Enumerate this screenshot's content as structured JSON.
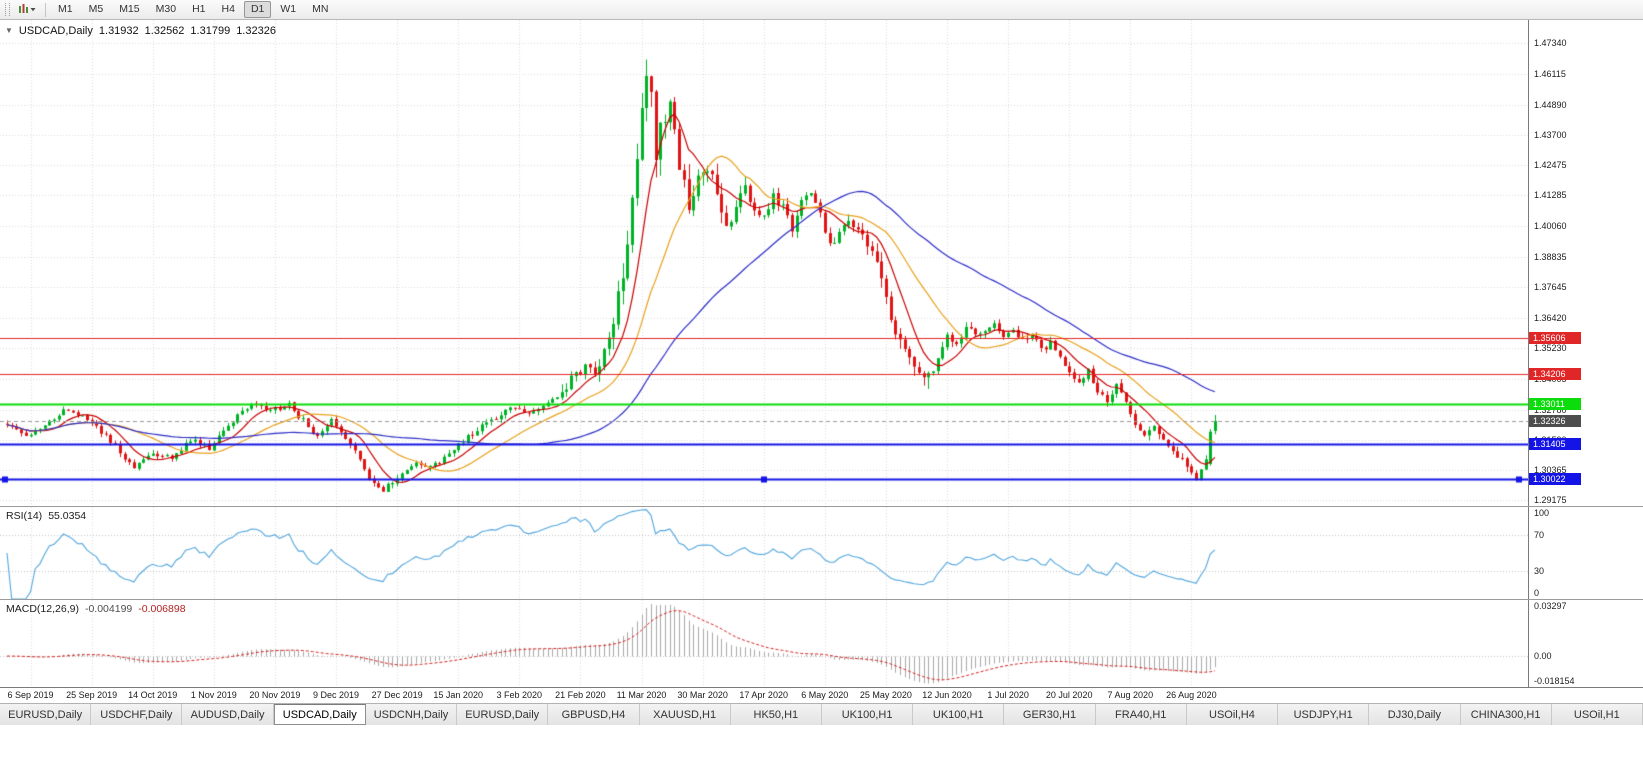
{
  "toolbar": {
    "timeframes": [
      {
        "label": "M1"
      },
      {
        "label": "M5"
      },
      {
        "label": "M15"
      },
      {
        "label": "M30"
      },
      {
        "label": "H1"
      },
      {
        "label": "H4"
      },
      {
        "label": "D1"
      },
      {
        "label": "W1"
      },
      {
        "label": "MN"
      }
    ],
    "active_timeframe": "D1"
  },
  "chart_header": {
    "one_click_arrow": "▼",
    "title": "USDCAD,Daily",
    "open": "1.31932",
    "high": "1.32562",
    "low": "1.31799",
    "close": "1.32326"
  },
  "indicators": {
    "rsi": {
      "label": "RSI(14)",
      "value": "55.0354"
    },
    "macd": {
      "label": "MACD(12,26,9)",
      "value_main": "-0.004199",
      "value_signal": "-0.006898"
    }
  },
  "chart_data": {
    "type": "candlestick",
    "symbol": "USDCAD",
    "timeframe": "Daily",
    "ohlc": {
      "open": 1.31932,
      "high": 1.32562,
      "low": 1.31799,
      "close": 1.32326
    },
    "candle_count": 258,
    "y_axis": {
      "min": 1.2895,
      "max": 1.4825,
      "tick_labels": [
        "1.47340",
        "1.46115",
        "1.44890",
        "1.43700",
        "1.42475",
        "1.41285",
        "1.40060",
        "1.38835",
        "1.37645",
        "1.36420",
        "1.35230",
        "1.34005",
        "1.32780",
        "1.31590",
        "1.30365",
        "1.29175"
      ]
    },
    "x_axis": {
      "labels": [
        "6 Sep 2019",
        "25 Sep 2019",
        "14 Oct 2019",
        "1 Nov 2019",
        "20 Nov 2019",
        "9 Dec 2019",
        "27 Dec 2019",
        "15 Jan 2020",
        "3 Feb 2020",
        "21 Feb 2020",
        "11 Mar 2020",
        "30 Mar 2020",
        "17 Apr 2020",
        "6 May 2020",
        "25 May 2020",
        "12 Jun 2020",
        "1 Jul 2020",
        "20 Jul 2020",
        "7 Aug 2020",
        "26 Aug 2020"
      ],
      "first_label_candle_index": 5,
      "candles_per_label": 13
    },
    "colors": {
      "up": "#00b227",
      "down": "#e01414",
      "grid": "#dcdcdc",
      "level_line": "#c4c4c4",
      "rsi_line": "#53a6dd",
      "macd_hist": "#a8a8a8",
      "macd_signal": "#d42020",
      "current_price_line": "#9a9a9a",
      "current_price_tag": "#4d4d4d"
    },
    "price_anchors": [
      [
        0,
        1.3225
      ],
      [
        4,
        1.3172
      ],
      [
        9,
        1.3235
      ],
      [
        13,
        1.3282
      ],
      [
        17,
        1.3242
      ],
      [
        21,
        1.3168
      ],
      [
        24,
        1.3112
      ],
      [
        27,
        1.3046
      ],
      [
        31,
        1.3105
      ],
      [
        35,
        1.3082
      ],
      [
        39,
        1.3158
      ],
      [
        43,
        1.3128
      ],
      [
        47,
        1.3215
      ],
      [
        52,
        1.3298
      ],
      [
        56,
        1.3272
      ],
      [
        60,
        1.3295
      ],
      [
        63,
        1.3232
      ],
      [
        66,
        1.3178
      ],
      [
        69,
        1.3245
      ],
      [
        72,
        1.3168
      ],
      [
        75,
        1.3082
      ],
      [
        78,
        1.2978
      ],
      [
        80,
        1.296
      ],
      [
        83,
        1.3006
      ],
      [
        87,
        1.3062
      ],
      [
        91,
        1.3056
      ],
      [
        95,
        1.3116
      ],
      [
        99,
        1.3186
      ],
      [
        102,
        1.3232
      ],
      [
        105,
        1.3256
      ],
      [
        108,
        1.3296
      ],
      [
        111,
        1.3262
      ],
      [
        114,
        1.3282
      ],
      [
        117,
        1.3322
      ],
      [
        120,
        1.3388
      ],
      [
        123,
        1.3448
      ],
      [
        125,
        1.3425
      ],
      [
        127,
        1.3508
      ],
      [
        129,
        1.3625
      ],
      [
        131,
        1.3795
      ],
      [
        133,
        1.4085
      ],
      [
        135,
        1.4445
      ],
      [
        136,
        1.46
      ],
      [
        137,
        1.4495
      ],
      [
        138,
        1.429
      ],
      [
        139,
        1.4425
      ],
      [
        141,
        1.4455
      ],
      [
        143,
        1.4282
      ],
      [
        145,
        1.4095
      ],
      [
        147,
        1.4185
      ],
      [
        149,
        1.4255
      ],
      [
        151,
        1.4115
      ],
      [
        153,
        1.3995
      ],
      [
        155,
        1.4092
      ],
      [
        157,
        1.4158
      ],
      [
        159,
        1.4085
      ],
      [
        161,
        1.4032
      ],
      [
        163,
        1.4122
      ],
      [
        165,
        1.4082
      ],
      [
        167,
        1.3985
      ],
      [
        169,
        1.4098
      ],
      [
        171,
        1.4138
      ],
      [
        173,
        1.4052
      ],
      [
        175,
        1.3935
      ],
      [
        177,
        1.3982
      ],
      [
        179,
        1.4038
      ],
      [
        181,
        1.3985
      ],
      [
        183,
        1.3938
      ],
      [
        185,
        1.3842
      ],
      [
        187,
        1.3705
      ],
      [
        189,
        1.3585
      ],
      [
        191,
        1.3505
      ],
      [
        193,
        1.3472
      ],
      [
        195,
        1.3425
      ],
      [
        196,
        1.3398
      ],
      [
        198,
        1.3482
      ],
      [
        200,
        1.3562
      ],
      [
        202,
        1.3532
      ],
      [
        204,
        1.3608
      ],
      [
        206,
        1.3562
      ],
      [
        208,
        1.3582
      ],
      [
        210,
        1.3618
      ],
      [
        212,
        1.3562
      ],
      [
        214,
        1.3598
      ],
      [
        216,
        1.3552
      ],
      [
        218,
        1.3578
      ],
      [
        220,
        1.3512
      ],
      [
        222,
        1.3548
      ],
      [
        224,
        1.3482
      ],
      [
        226,
        1.3415
      ],
      [
        228,
        1.3392
      ],
      [
        230,
        1.3428
      ],
      [
        232,
        1.3352
      ],
      [
        234,
        1.3302
      ],
      [
        236,
        1.3388
      ],
      [
        238,
        1.3312
      ],
      [
        240,
        1.3232
      ],
      [
        242,
        1.3185
      ],
      [
        244,
        1.3228
      ],
      [
        246,
        1.3162
      ],
      [
        248,
        1.3112
      ],
      [
        250,
        1.3085
      ],
      [
        252,
        1.303
      ],
      [
        253,
        1.3006
      ],
      [
        254,
        1.3044
      ],
      [
        255,
        1.3068
      ],
      [
        256,
        1.319
      ],
      [
        257,
        1.32326
      ]
    ],
    "volatility_zones": [
      [
        0,
        0.0022
      ],
      [
        118,
        0.0045
      ],
      [
        128,
        0.0085
      ],
      [
        137,
        0.0095
      ],
      [
        146,
        0.006
      ],
      [
        158,
        0.0035
      ],
      [
        183,
        0.005
      ],
      [
        197,
        0.003
      ],
      [
        212,
        0.0025
      ],
      [
        240,
        0.0028
      ]
    ],
    "pinned_candles": [
      {
        "i": 80,
        "l": 1.2952
      },
      {
        "i": 136,
        "h": 1.4668
      },
      {
        "i": 196,
        "l": 1.336
      },
      {
        "i": 253,
        "l": 1.2995
      },
      {
        "i": 256,
        "o": 1.3062,
        "h": 1.32,
        "l": 1.3055,
        "c": 1.319
      },
      {
        "i": 257,
        "o": 1.31932,
        "h": 1.32562,
        "l": 1.31799,
        "c": 1.32326
      }
    ],
    "moving_averages": [
      {
        "period": 8,
        "color": "#c80000"
      },
      {
        "period": 20,
        "color": "#e8a11e"
      },
      {
        "period": 50,
        "color": "#2d2dc8"
      }
    ],
    "horizontal_lines": [
      {
        "price": 1.35606,
        "label": "1.35606",
        "color": "#e02626",
        "width": 1,
        "selected": false
      },
      {
        "price": 1.34206,
        "label": "1.34206",
        "color": "#e02626",
        "width": 1,
        "selected": false
      },
      {
        "price": 1.33011,
        "label": "1.33011",
        "color": "#0bdc0b",
        "width": 2,
        "selected": false
      },
      {
        "price": 1.31405,
        "label": "1.31405",
        "color": "#1414e6",
        "width": 2,
        "selected": false
      },
      {
        "price": 1.30022,
        "label": "1.30022",
        "color": "#1414e6",
        "width": 2,
        "selected": true
      }
    ],
    "current_price": {
      "value": 1.32326,
      "label": "1.32326"
    },
    "rsi": {
      "period": 14,
      "range": [
        0,
        100
      ],
      "levels": [
        "100",
        "70",
        "30",
        "0"
      ],
      "level_lines": [
        70,
        30
      ]
    },
    "macd": {
      "fast": 12,
      "slow": 26,
      "signal": 9,
      "range": [
        -0.0182,
        0.033
      ],
      "scale_labels": {
        "max": "0.03297",
        "zero": "0.00",
        "min": "-0.018154"
      }
    }
  },
  "tabbar": {
    "active_index": 3,
    "tabs": [
      {
        "label": "EURUSD,Daily"
      },
      {
        "label": "USDCHF,Daily"
      },
      {
        "label": "AUDUSD,Daily"
      },
      {
        "label": "USDCAD,Daily"
      },
      {
        "label": "USDCNH,Daily"
      },
      {
        "label": "EURUSD,Daily"
      },
      {
        "label": "GBPUSD,H4"
      },
      {
        "label": "XAUUSD,H1"
      },
      {
        "label": "HK50,H1"
      },
      {
        "label": "UK100,H1"
      },
      {
        "label": "UK100,H1"
      },
      {
        "label": "GER30,H1"
      },
      {
        "label": "FRA40,H1"
      },
      {
        "label": "USOil,H4"
      },
      {
        "label": "USDJPY,H1"
      },
      {
        "label": "DJ30,Daily"
      },
      {
        "label": "CHINA300,H1"
      },
      {
        "label": "USOil,H1"
      }
    ]
  }
}
